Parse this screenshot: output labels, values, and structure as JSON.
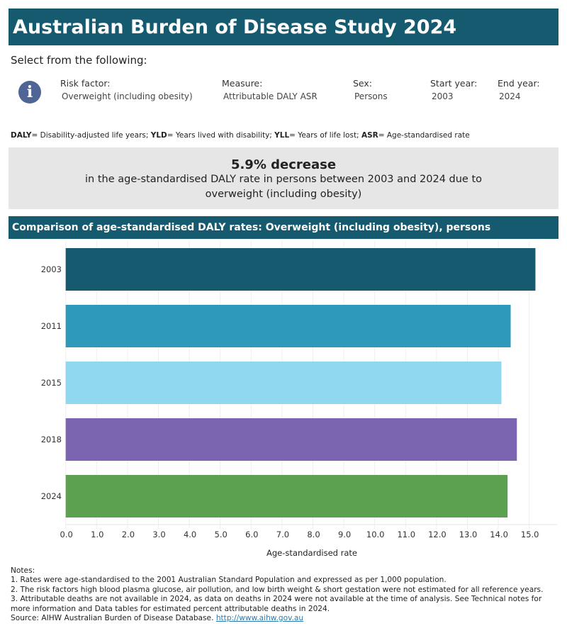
{
  "title": "Australian Burden of Disease Study 2024",
  "select_prompt": "Select from the following:",
  "filters": [
    {
      "label": "Risk factor:",
      "value": "Overweight (including obesity)"
    },
    {
      "label": "Measure:",
      "value": "Attributable DALY ASR"
    },
    {
      "label": "Sex:",
      "value": "Persons"
    },
    {
      "label": "Start year:",
      "value": "2003"
    },
    {
      "label": "End year:",
      "value": "2024"
    }
  ],
  "icons": {
    "info": "info-icon"
  },
  "abbreviations": [
    {
      "term": "DALY",
      "def": "= Disability-adjusted life years; "
    },
    {
      "term": "YLD",
      "def": "= Years lived with disability; "
    },
    {
      "term": "YLL",
      "def": "= Years of life lost; "
    },
    {
      "term": "ASR",
      "def": "= Age-standardised rate"
    }
  ],
  "summary": {
    "headline": "5.9% decrease",
    "text": "in the age-standardised DALY rate in persons between 2003 and 2024 due to overweight (including obesity)"
  },
  "chart_data": {
    "type": "bar",
    "orientation": "horizontal",
    "title": "Comparison of age-standardised DALY rates: Overweight (including obesity), persons",
    "categories": [
      "2003",
      "2011",
      "2015",
      "2018",
      "2024"
    ],
    "values": [
      15.2,
      14.4,
      14.1,
      14.6,
      14.3
    ],
    "colors": [
      "#155a6f",
      "#2e99ba",
      "#8fd8f0",
      "#7b64b0",
      "#5ba14f"
    ],
    "xlabel": "Age-standardised rate",
    "xlim": [
      0,
      15.9
    ],
    "xticks": [
      "0.0",
      "1.0",
      "2.0",
      "3.0",
      "4.0",
      "5.0",
      "6.0",
      "7.0",
      "8.0",
      "9.0",
      "10.0",
      "11.0",
      "12.0",
      "13.0",
      "14.0",
      "15.0"
    ],
    "grid": true
  },
  "notes": {
    "heading": "Notes:",
    "items": [
      "1. Rates were age-standardised to the 2001 Australian Standard Population and expressed as per 1,000 population.",
      "2. The risk factors high blood plasma glucose, air pollution, and low birth weight & short gestation were not estimated for all reference years.",
      "3. Attributable deaths are not available in 2024, as data on deaths in 2024 were not available at the time of analysis. See Technical notes for more information and Data tables for estimated percent attributable deaths in 2024."
    ],
    "source": "Source: AIHW Australian Burden of Disease Database. ",
    "link": "http://www.aihw.gov.au"
  }
}
